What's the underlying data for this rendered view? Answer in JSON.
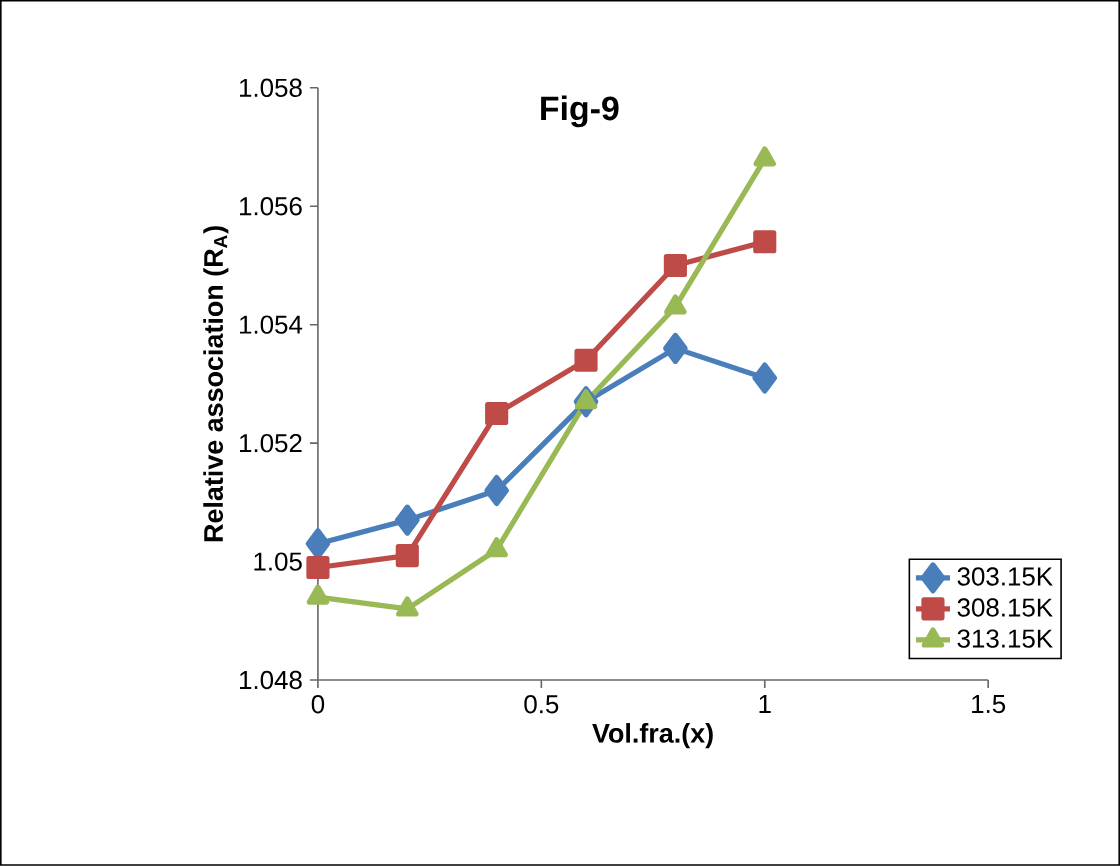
{
  "chart_data": {
    "type": "line",
    "title": "Fig-9",
    "xlabel": "Vol.fra.(x)",
    "ylabel": "Relative association (R$_{A}$)",
    "x": [
      0,
      0.2,
      0.4,
      0.6,
      0.8,
      1
    ],
    "series": [
      {
        "name": "303.15K",
        "color": "#4a7ebb",
        "marker": "diamond",
        "values": [
          1.0503,
          1.0507,
          1.0512,
          1.0527,
          1.0536,
          1.0531
        ]
      },
      {
        "name": "308.15K",
        "color": "#be4b48",
        "marker": "square",
        "values": [
          1.0499,
          1.0501,
          1.0525,
          1.0534,
          1.055,
          1.0554
        ]
      },
      {
        "name": "313.15K",
        "color": "#98b954",
        "marker": "triangle",
        "values": [
          1.0494,
          1.0492,
          1.0502,
          1.0527,
          1.0543,
          1.0568
        ]
      }
    ],
    "xlim": [
      0,
      1.5
    ],
    "xticks": [
      0,
      0.5,
      1,
      1.5
    ],
    "ylim": [
      1.048,
      1.058
    ],
    "yticks": [
      1.048,
      1.05,
      1.052,
      1.054,
      1.056,
      1.058
    ],
    "grid": false,
    "legend": "bottom right",
    "line_style": "solid"
  }
}
